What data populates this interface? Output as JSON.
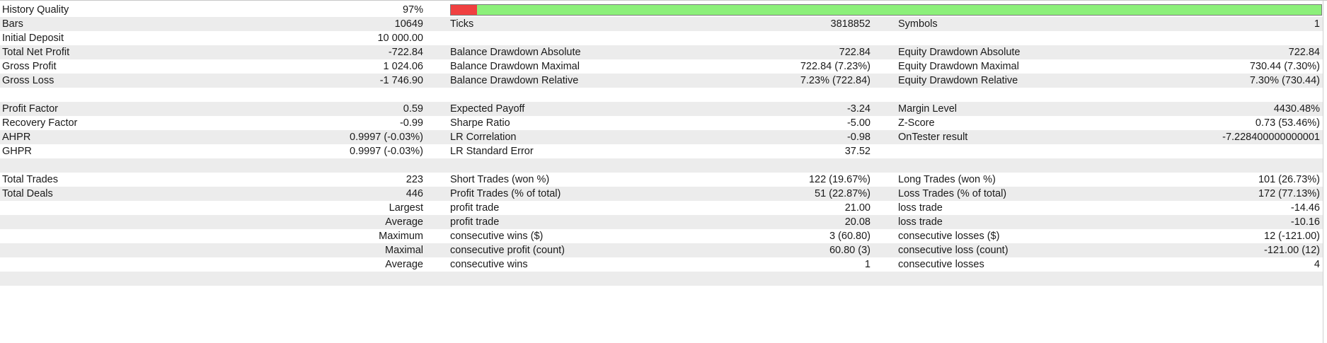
{
  "history_quality": {
    "label": "History Quality",
    "value": "97%",
    "quality_fraction": 0.97,
    "good_color": "#8cf07a",
    "bad_color": "#f04040"
  },
  "rows": [
    {
      "l1": "Bars",
      "v1": "10649",
      "l2": "Ticks",
      "v2": "3818852",
      "l3": "Symbols",
      "v3": "1"
    },
    {
      "l1": "Initial Deposit",
      "v1": "10 000.00",
      "l2": "",
      "v2": "",
      "l3": "",
      "v3": ""
    },
    {
      "l1": "Total Net Profit",
      "v1": "-722.84",
      "l2": "Balance Drawdown Absolute",
      "v2": "722.84",
      "l3": "Equity Drawdown Absolute",
      "v3": "722.84"
    },
    {
      "l1": "Gross Profit",
      "v1": "1 024.06",
      "l2": "Balance Drawdown Maximal",
      "v2": "722.84 (7.23%)",
      "l3": "Equity Drawdown Maximal",
      "v3": "730.44 (7.30%)"
    },
    {
      "l1": "Gross Loss",
      "v1": "-1 746.90",
      "l2": "Balance Drawdown Relative",
      "v2": "7.23% (722.84)",
      "l3": "Equity Drawdown Relative",
      "v3": "7.30% (730.44)"
    },
    {
      "l1": "",
      "v1": "",
      "l2": "",
      "v2": "",
      "l3": "",
      "v3": ""
    },
    {
      "l1": "Profit Factor",
      "v1": "0.59",
      "l2": "Expected Payoff",
      "v2": "-3.24",
      "l3": "Margin Level",
      "v3": "4430.48%"
    },
    {
      "l1": "Recovery Factor",
      "v1": "-0.99",
      "l2": "Sharpe Ratio",
      "v2": "-5.00",
      "l3": "Z-Score",
      "v3": "0.73 (53.46%)"
    },
    {
      "l1": "AHPR",
      "v1": "0.9997 (-0.03%)",
      "l2": "LR Correlation",
      "v2": "-0.98",
      "l3": "OnTester result",
      "v3": "-7.228400000000001"
    },
    {
      "l1": "GHPR",
      "v1": "0.9997 (-0.03%)",
      "l2": "LR Standard Error",
      "v2": "37.52",
      "l3": "",
      "v3": ""
    },
    {
      "l1": "",
      "v1": "",
      "l2": "",
      "v2": "",
      "l3": "",
      "v3": ""
    },
    {
      "l1": "Total Trades",
      "v1": "223",
      "l2": "Short Trades (won %)",
      "v2": "122 (19.67%)",
      "l3": "Long Trades (won %)",
      "v3": "101 (26.73%)"
    },
    {
      "l1": "Total Deals",
      "v1": "446",
      "l2": "Profit Trades (% of total)",
      "v2": "51 (22.87%)",
      "l3": "Loss Trades (% of total)",
      "v3": "172 (77.13%)"
    },
    {
      "l1": "",
      "v1": "Largest",
      "l2": "profit trade",
      "v2": "21.00",
      "l3": "loss trade",
      "v3": "-14.46"
    },
    {
      "l1": "",
      "v1": "Average",
      "l2": "profit trade",
      "v2": "20.08",
      "l3": "loss trade",
      "v3": "-10.16"
    },
    {
      "l1": "",
      "v1": "Maximum",
      "l2": "consecutive wins ($)",
      "v2": "3 (60.80)",
      "l3": "consecutive losses ($)",
      "v3": "12 (-121.00)"
    },
    {
      "l1": "",
      "v1": "Maximal",
      "l2": "consecutive profit (count)",
      "v2": "60.80 (3)",
      "l3": "consecutive loss (count)",
      "v3": "-121.00 (12)"
    },
    {
      "l1": "",
      "v1": "Average",
      "l2": "consecutive wins",
      "v2": "1",
      "l3": "consecutive losses",
      "v3": "4"
    },
    {
      "l1": "",
      "v1": "",
      "l2": "",
      "v2": "",
      "l3": "",
      "v3": ""
    }
  ]
}
